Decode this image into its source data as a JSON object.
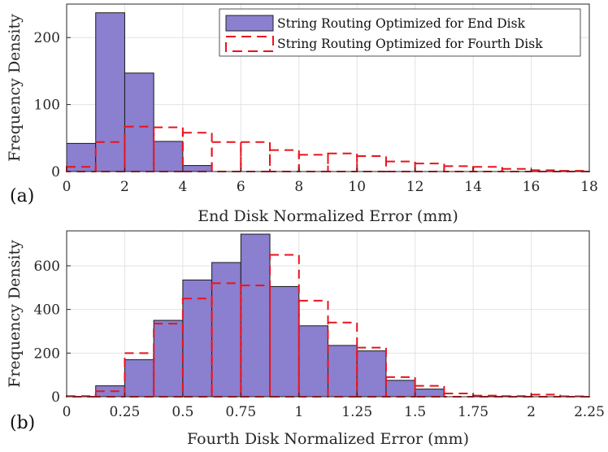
{
  "chart_data": [
    {
      "type": "histogram",
      "panel_label": "(a)",
      "xlabel": "End Disk Normalized Error (mm)",
      "ylabel": "Frequency Density",
      "xlim": [
        0,
        18
      ],
      "ylim": [
        0,
        250
      ],
      "xticks": [
        "0",
        "2",
        "4",
        "6",
        "8",
        "10",
        "12",
        "14",
        "16",
        "18"
      ],
      "yticks": [
        "0",
        "100",
        "200"
      ],
      "grid": true,
      "legend_position": "top-right",
      "series": [
        {
          "name": "String Routing Optimized for End Disk",
          "style": "filled",
          "color": "#8b7fcf",
          "bin_edges": [
            0,
            1,
            2,
            3,
            4,
            5
          ],
          "values": [
            42,
            237,
            147,
            45,
            9
          ]
        },
        {
          "name": "String Routing Optimized for Fourth Disk",
          "style": "dashed-outline",
          "color": "#e8141c",
          "bin_edges": [
            0,
            1,
            2,
            3,
            4,
            5,
            6,
            7,
            8,
            9,
            10,
            11,
            12,
            13,
            14,
            15,
            16,
            17,
            18
          ],
          "values": [
            7,
            44,
            67,
            66,
            58,
            44,
            44,
            32,
            25,
            27,
            23,
            15,
            12,
            8,
            7,
            4,
            2,
            1
          ]
        }
      ]
    },
    {
      "type": "histogram",
      "panel_label": "(b)",
      "xlabel": "Fourth Disk Normalized Error (mm)",
      "ylabel": "Frequency Density",
      "xlim": [
        0,
        2.25
      ],
      "ylim": [
        0,
        760
      ],
      "xticks": [
        "0",
        "0.25",
        "0.5",
        "0.75",
        "1",
        "1.25",
        "1.5",
        "1.75",
        "2",
        "2.25"
      ],
      "yticks": [
        "0",
        "200",
        "400",
        "600"
      ],
      "grid": true,
      "series": [
        {
          "name": "String Routing Optimized for End Disk",
          "style": "filled",
          "color": "#8b7fcf",
          "bin_edges": [
            0,
            0.125,
            0.25,
            0.375,
            0.5,
            0.625,
            0.75,
            0.875,
            1,
            1.125,
            1.25,
            1.375,
            1.5,
            1.625,
            1.75,
            1.875,
            2,
            2.125,
            2.25
          ],
          "values": [
            0,
            50,
            170,
            350,
            535,
            615,
            745,
            505,
            325,
            235,
            210,
            75,
            35,
            0,
            0,
            0,
            0,
            0
          ]
        },
        {
          "name": "String Routing Optimized for Fourth Disk",
          "style": "dashed-outline",
          "color": "#e8141c",
          "bin_edges": [
            0,
            0.125,
            0.25,
            0.375,
            0.5,
            0.625,
            0.75,
            0.875,
            1,
            1.125,
            1.25,
            1.375,
            1.5,
            1.625,
            1.75,
            1.875,
            2,
            2.125,
            2.25
          ],
          "values": [
            3,
            25,
            200,
            335,
            450,
            520,
            510,
            650,
            440,
            340,
            225,
            90,
            50,
            15,
            5,
            3,
            10,
            2
          ]
        }
      ]
    }
  ]
}
